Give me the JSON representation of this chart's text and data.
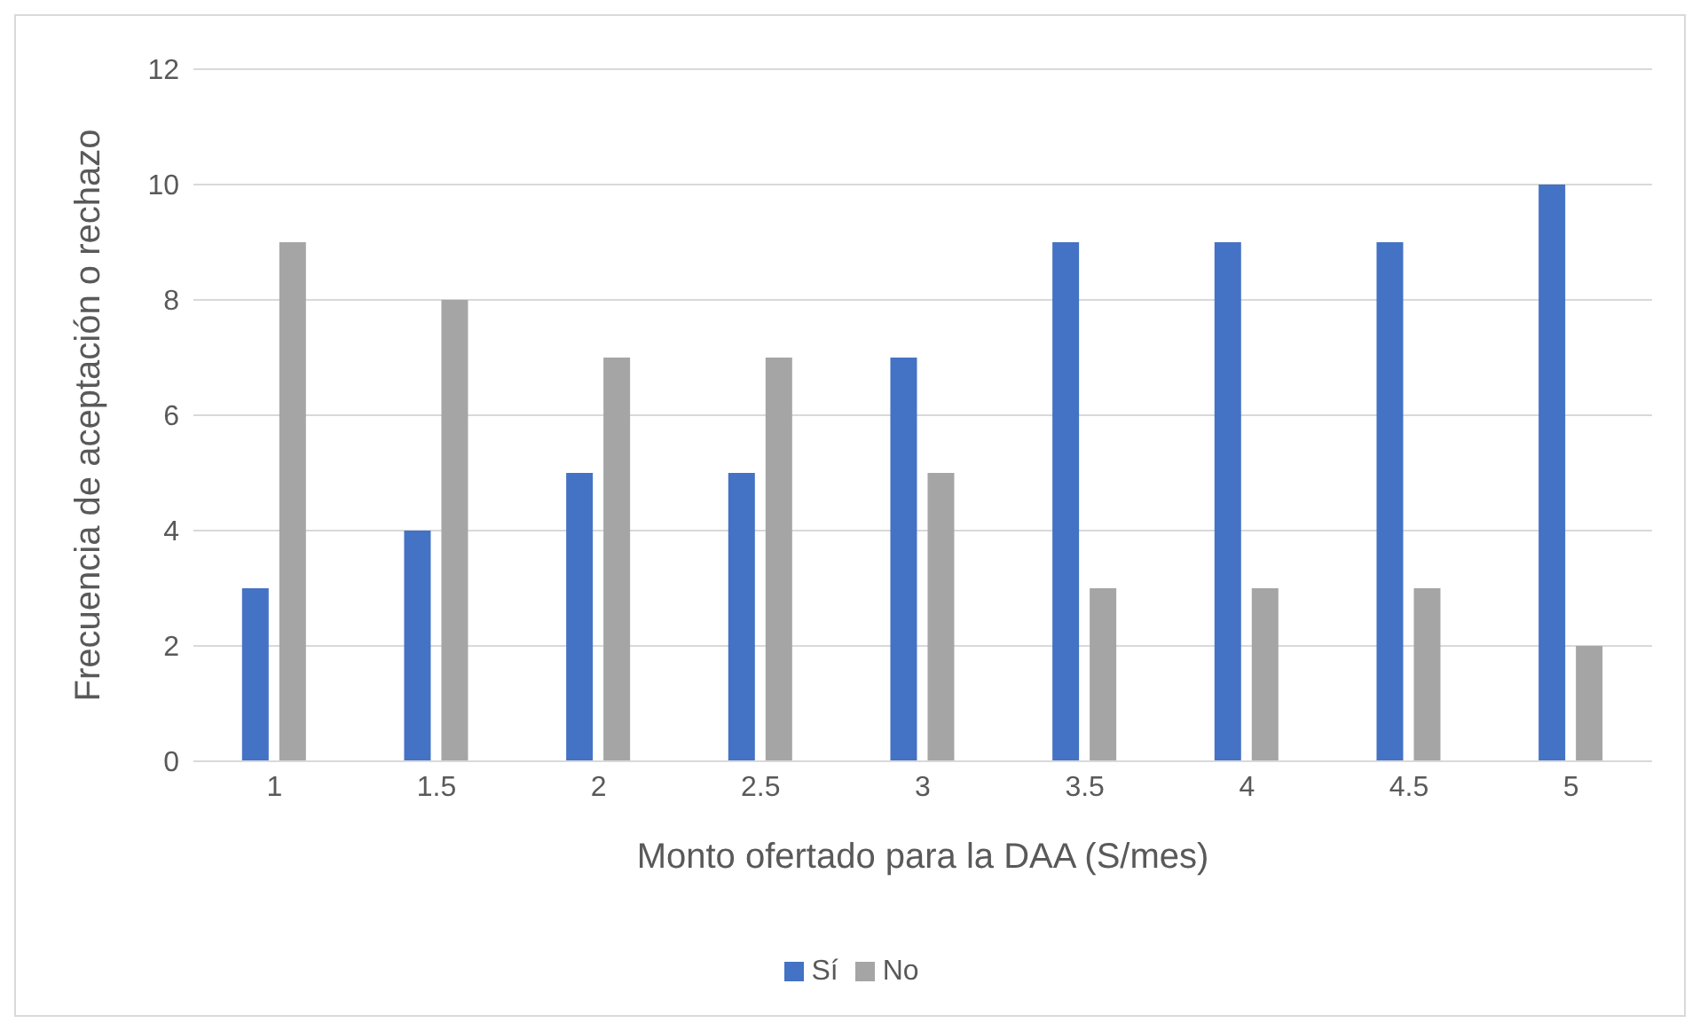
{
  "chart_data": {
    "type": "bar",
    "xlabel": "Monto ofertado para la DAA (S/mes)",
    "ylabel": "Frecuencia de aceptación o rechazo",
    "categories": [
      "1",
      "1.5",
      "2",
      "2.5",
      "3",
      "3.5",
      "4",
      "4.5",
      "5"
    ],
    "series": [
      {
        "name": "Sí",
        "color": "#4472c4",
        "values": [
          3,
          4,
          5,
          5,
          7,
          9,
          9,
          9,
          10
        ]
      },
      {
        "name": "No",
        "color": "#a5a5a5",
        "values": [
          9,
          8,
          7,
          7,
          5,
          3,
          3,
          3,
          2
        ]
      }
    ],
    "ylim": [
      0,
      12
    ],
    "yticks": [
      0,
      2,
      4,
      6,
      8,
      10,
      12
    ],
    "grid": "y",
    "legend": "bottom"
  }
}
